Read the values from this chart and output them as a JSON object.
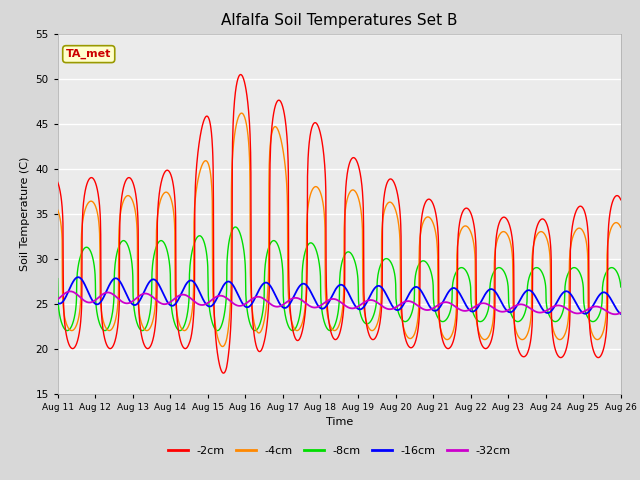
{
  "title": "Alfalfa Soil Temperatures Set B",
  "xlabel": "Time",
  "ylabel": "Soil Temperature (C)",
  "ylim": [
    15,
    55
  ],
  "yticks": [
    15,
    20,
    25,
    30,
    35,
    40,
    45,
    50,
    55
  ],
  "series_labels": [
    "-2cm",
    "-4cm",
    "-8cm",
    "-16cm",
    "-32cm"
  ],
  "series_colors": [
    "#ff0000",
    "#ff8800",
    "#00dd00",
    "#0000ff",
    "#cc00cc"
  ],
  "ta_met_label": "TA_met",
  "background_color": "#d8d8d8",
  "plot_bg_color": "#ebebeb",
  "x_start": 0,
  "x_end": 15,
  "xtick_labels": [
    "Aug 11",
    "Aug 12",
    "Aug 13",
    "Aug 14",
    "Aug 15",
    "Aug 16",
    "Aug 17",
    "Aug 18",
    "Aug 19",
    "Aug 20",
    "Aug 21",
    "Aug 22",
    "Aug 23",
    "Aug 24",
    "Aug 25",
    "Aug 26"
  ],
  "xtick_positions": [
    0,
    1,
    2,
    3,
    4,
    5,
    6,
    7,
    8,
    9,
    10,
    11,
    12,
    13,
    14,
    15
  ]
}
